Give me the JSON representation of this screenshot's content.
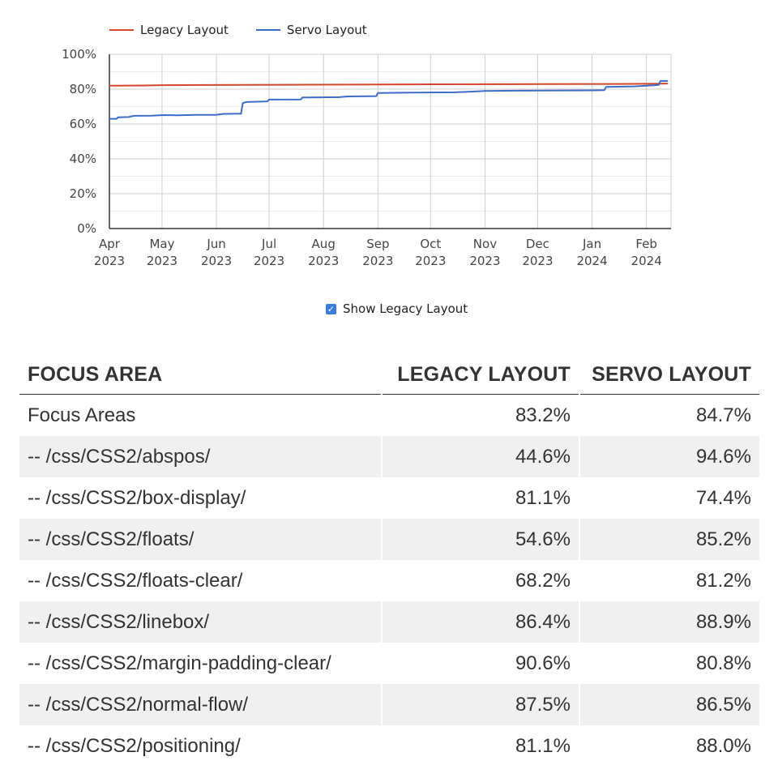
{
  "chart_data": {
    "type": "line",
    "title": "",
    "xlabel": "",
    "ylabel": "",
    "ylim": [
      0,
      100
    ],
    "y_ticks": [
      "0%",
      "20%",
      "40%",
      "60%",
      "80%",
      "100%"
    ],
    "x_ticks": [
      {
        "date": "2023-04-01",
        "month": "Apr",
        "year": "2023"
      },
      {
        "date": "2023-05-01",
        "month": "May",
        "year": "2023"
      },
      {
        "date": "2023-06-01",
        "month": "Jun",
        "year": "2023"
      },
      {
        "date": "2023-07-01",
        "month": "Jul",
        "year": "2023"
      },
      {
        "date": "2023-08-01",
        "month": "Aug",
        "year": "2023"
      },
      {
        "date": "2023-09-01",
        "month": "Sep",
        "year": "2023"
      },
      {
        "date": "2023-10-01",
        "month": "Oct",
        "year": "2023"
      },
      {
        "date": "2023-11-01",
        "month": "Nov",
        "year": "2023"
      },
      {
        "date": "2023-12-01",
        "month": "Dec",
        "year": "2023"
      },
      {
        "date": "2024-01-01",
        "month": "Jan",
        "year": "2024"
      },
      {
        "date": "2024-02-01",
        "month": "Feb",
        "year": "2024"
      }
    ],
    "grid": true,
    "legend_position": "top-left",
    "series": [
      {
        "name": "Legacy Layout",
        "color": "#d2462a",
        "points": [
          [
            "2023-04-01",
            82.0
          ],
          [
            "2023-04-20",
            82.1
          ],
          [
            "2023-05-01",
            82.3
          ],
          [
            "2023-06-15",
            82.4
          ],
          [
            "2023-08-17",
            82.6
          ],
          [
            "2023-10-01",
            82.8
          ],
          [
            "2023-12-01",
            82.9
          ],
          [
            "2024-01-15",
            83.0
          ],
          [
            "2024-02-08",
            83.1
          ],
          [
            "2024-02-13",
            83.2
          ]
        ]
      },
      {
        "name": "Servo Layout",
        "color": "#3d6cc8",
        "points": [
          [
            "2023-04-01",
            63.0
          ],
          [
            "2023-04-05",
            63.0
          ],
          [
            "2023-04-06",
            63.8
          ],
          [
            "2023-04-12",
            64.0
          ],
          [
            "2023-04-15",
            64.7
          ],
          [
            "2023-04-25",
            64.8
          ],
          [
            "2023-05-02",
            65.1
          ],
          [
            "2023-05-10",
            65.0
          ],
          [
            "2023-05-20",
            65.2
          ],
          [
            "2023-05-31",
            65.2
          ],
          [
            "2023-06-01",
            65.3
          ],
          [
            "2023-06-05",
            65.8
          ],
          [
            "2023-06-15",
            65.9
          ],
          [
            "2023-06-16",
            72.0
          ],
          [
            "2023-06-18",
            72.6
          ],
          [
            "2023-06-30",
            73.0
          ],
          [
            "2023-07-01",
            74.0
          ],
          [
            "2023-07-19",
            74.1
          ],
          [
            "2023-07-20",
            75.2
          ],
          [
            "2023-08-10",
            75.4
          ],
          [
            "2023-08-15",
            75.8
          ],
          [
            "2023-08-31",
            76.0
          ],
          [
            "2023-09-01",
            77.8
          ],
          [
            "2023-09-20",
            78.0
          ],
          [
            "2023-10-15",
            78.2
          ],
          [
            "2023-10-25",
            78.6
          ],
          [
            "2023-11-01",
            79.0
          ],
          [
            "2023-12-01",
            79.2
          ],
          [
            "2024-01-01",
            79.3
          ],
          [
            "2024-01-08",
            79.4
          ],
          [
            "2024-01-09",
            81.3
          ],
          [
            "2024-01-25",
            81.6
          ],
          [
            "2024-02-05",
            82.2
          ],
          [
            "2024-02-08",
            82.4
          ],
          [
            "2024-02-09",
            84.7
          ],
          [
            "2024-02-13",
            84.7
          ]
        ]
      }
    ]
  },
  "legend": [
    {
      "label": "Legacy Layout",
      "color": "#d2462a"
    },
    {
      "label": "Servo Layout",
      "color": "#3d6cc8"
    }
  ],
  "toggle": {
    "label": "Show Legacy Layout",
    "checked": true,
    "check_glyph": "✓"
  },
  "table": {
    "headers": [
      "FOCUS AREA",
      "LEGACY LAYOUT",
      "SERVO LAYOUT"
    ],
    "rows": [
      [
        "Focus Areas",
        "83.2%",
        "84.7%"
      ],
      [
        "-- /css/CSS2/abspos/",
        "44.6%",
        "94.6%"
      ],
      [
        "-- /css/CSS2/box-display/",
        "81.1%",
        "74.4%"
      ],
      [
        "-- /css/CSS2/floats/",
        "54.6%",
        "85.2%"
      ],
      [
        "-- /css/CSS2/floats-clear/",
        "68.2%",
        "81.2%"
      ],
      [
        "-- /css/CSS2/linebox/",
        "86.4%",
        "88.9%"
      ],
      [
        "-- /css/CSS2/margin-padding-clear/",
        "90.6%",
        "80.8%"
      ],
      [
        "-- /css/CSS2/normal-flow/",
        "87.5%",
        "86.5%"
      ],
      [
        "-- /css/CSS2/positioning/",
        "81.1%",
        "88.0%"
      ]
    ]
  }
}
